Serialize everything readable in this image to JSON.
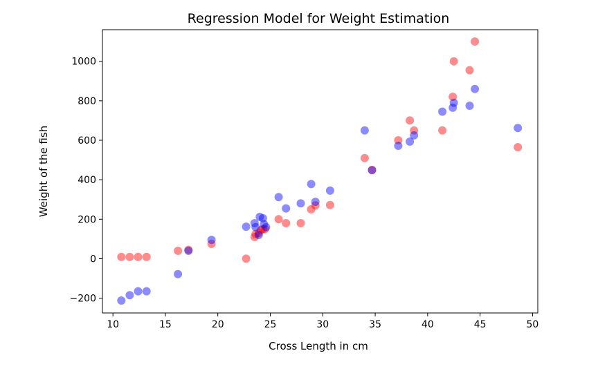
{
  "chart_data": {
    "type": "scatter",
    "title": "Regression Model for Weight Estimation",
    "xlabel": "Cross Length in cm",
    "ylabel": "Weight of the fish",
    "xlim": [
      9.0,
      50.5
    ],
    "ylim": [
      -275,
      1160
    ],
    "xticks": [
      10,
      15,
      20,
      25,
      30,
      35,
      40,
      45,
      50
    ],
    "yticks": [
      -200,
      0,
      200,
      400,
      600,
      800,
      1000
    ],
    "grid": false,
    "series": [
      {
        "color": "#ff0000",
        "opacity": 0.45,
        "points": [
          [
            10.8,
            9
          ],
          [
            11.6,
            9
          ],
          [
            12.4,
            9
          ],
          [
            13.2,
            9
          ],
          [
            16.2,
            40
          ],
          [
            17.2,
            45
          ],
          [
            19.4,
            75
          ],
          [
            22.7,
            0
          ],
          [
            23.5,
            110
          ],
          [
            23.6,
            125
          ],
          [
            23.9,
            130
          ],
          [
            24.1,
            145
          ],
          [
            24.3,
            150
          ],
          [
            24.5,
            150
          ],
          [
            25.8,
            200
          ],
          [
            26.5,
            180
          ],
          [
            27.9,
            180
          ],
          [
            28.9,
            250
          ],
          [
            29.3,
            270
          ],
          [
            30.7,
            272
          ],
          [
            34.0,
            510
          ],
          [
            34.7,
            450
          ],
          [
            37.2,
            600
          ],
          [
            38.3,
            700
          ],
          [
            38.7,
            650
          ],
          [
            41.4,
            650
          ],
          [
            42.4,
            820
          ],
          [
            42.5,
            1000
          ],
          [
            44.0,
            955
          ],
          [
            44.5,
            1100
          ],
          [
            48.6,
            565
          ]
        ]
      },
      {
        "color": "#0000ff",
        "opacity": 0.45,
        "points": [
          [
            10.8,
            -212
          ],
          [
            11.6,
            -185
          ],
          [
            12.4,
            -165
          ],
          [
            13.2,
            -165
          ],
          [
            16.2,
            -78
          ],
          [
            17.2,
            40
          ],
          [
            19.4,
            95
          ],
          [
            22.7,
            162
          ],
          [
            23.5,
            180
          ],
          [
            23.6,
            160
          ],
          [
            23.9,
            120
          ],
          [
            24.0,
            212
          ],
          [
            24.3,
            205
          ],
          [
            24.4,
            175
          ],
          [
            24.6,
            160
          ],
          [
            25.8,
            312
          ],
          [
            26.5,
            255
          ],
          [
            27.9,
            280
          ],
          [
            28.9,
            378
          ],
          [
            29.3,
            288
          ],
          [
            30.7,
            345
          ],
          [
            34.0,
            650
          ],
          [
            34.7,
            448
          ],
          [
            37.2,
            572
          ],
          [
            38.3,
            593
          ],
          [
            38.7,
            625
          ],
          [
            41.4,
            745
          ],
          [
            42.4,
            765
          ],
          [
            42.5,
            790
          ],
          [
            44.0,
            775
          ],
          [
            44.5,
            860
          ],
          [
            48.6,
            662
          ]
        ]
      }
    ]
  }
}
